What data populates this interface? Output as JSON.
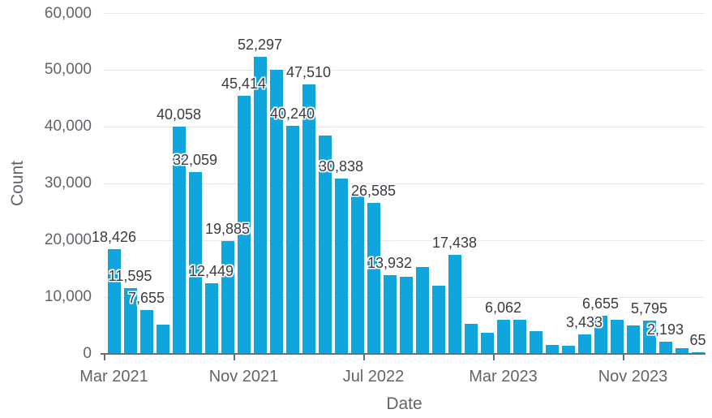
{
  "chart_data": {
    "type": "bar",
    "title": "",
    "xlabel": "Date",
    "ylabel": "Count",
    "x": [
      "Mar 2021",
      "Apr 2021",
      "May 2021",
      "Jun 2021",
      "Jul 2021",
      "Aug 2021",
      "Sep 2021",
      "Oct 2021",
      "Nov 2021",
      "Dec 2021",
      "Jan 2022",
      "Feb 2022",
      "Mar 2022",
      "Apr 2022",
      "May 2022",
      "Jun 2022",
      "Jul 2022",
      "Aug 2022",
      "Sep 2022",
      "Oct 2022",
      "Nov 2022",
      "Dec 2022",
      "Jan 2023",
      "Feb 2023",
      "Mar 2023",
      "Apr 2023",
      "May 2023",
      "Jun 2023",
      "Jul 2023",
      "Aug 2023",
      "Sep 2023",
      "Oct 2023",
      "Nov 2023",
      "Dec 2023",
      "Jan 2024",
      "Feb 2024",
      "Mar 2024"
    ],
    "values": [
      18426,
      11595,
      7655,
      5200,
      40058,
      32059,
      12449,
      19885,
      45414,
      52297,
      50000,
      40240,
      47510,
      38500,
      30838,
      28000,
      26585,
      13932,
      13550,
      15350,
      11950,
      17438,
      5350,
      3700,
      6062,
      5950,
      4000,
      1600,
      1450,
      3433,
      6655,
      5950,
      4950,
      5795,
      2193,
      950,
      65
    ],
    "bar_labels": [
      "18,426",
      "11,595",
      "7,655",
      null,
      "40,058",
      "32,059",
      "12,449",
      "19,885",
      "45,414",
      "52,297",
      null,
      "40,240",
      "47,510",
      null,
      "30,838",
      null,
      "26,585",
      "13,932",
      null,
      null,
      null,
      "17,438",
      null,
      null,
      "6,062",
      null,
      null,
      null,
      null,
      "3,433",
      "6,655",
      null,
      null,
      "5,795",
      "2,193",
      null,
      "65"
    ],
    "y_ticks": [
      {
        "value": 0,
        "label": "0"
      },
      {
        "value": 10000,
        "label": "10,000"
      },
      {
        "value": 20000,
        "label": "20,000"
      },
      {
        "value": 30000,
        "label": "30,000"
      },
      {
        "value": 40000,
        "label": "40,000"
      },
      {
        "value": 50000,
        "label": "50,000"
      },
      {
        "value": 60000,
        "label": "60,000"
      }
    ],
    "x_ticks": [
      {
        "index": 0,
        "label": "Mar 2021"
      },
      {
        "index": 8,
        "label": "Nov 2021"
      },
      {
        "index": 16,
        "label": "Jul 2022"
      },
      {
        "index": 24,
        "label": "Mar 2023"
      },
      {
        "index": 32,
        "label": "Nov 2023"
      }
    ],
    "ylim": [
      0,
      60000
    ],
    "grid": true,
    "legend": "none",
    "colors": {
      "bar": "#10A5DC",
      "axis_text": "#63636B",
      "bar_label_text": "#3B3B42",
      "gridline": "#E6E6EE",
      "axis_line": "#6C6C74",
      "background": "#FFFFFF"
    }
  }
}
